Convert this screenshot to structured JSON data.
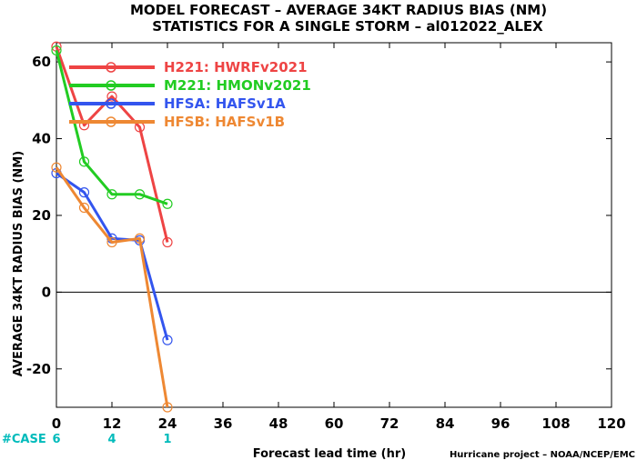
{
  "chart_data": {
    "type": "line",
    "title_line1": "MODEL FORECAST – AVERAGE 34KT RADIUS BIAS (NM)",
    "title_line2": "STATISTICS FOR A SINGLE STORM – al012022_ALEX",
    "xlabel": "Forecast lead time (hr)",
    "ylabel": "AVERAGE 34KT RADIUS BIAS (NM)",
    "xlim": [
      0,
      120
    ],
    "ylim": [
      -30,
      65
    ],
    "x_ticks": [
      0,
      12,
      24,
      36,
      48,
      60,
      72,
      84,
      96,
      108,
      120
    ],
    "y_ticks": [
      -20,
      0,
      20,
      40,
      60
    ],
    "zero_line": true,
    "grid": false,
    "legend_position": "top-left",
    "series": [
      {
        "name": "H221: HWRFv2021",
        "color": "#ee4444",
        "x": [
          0,
          6,
          12,
          18,
          24
        ],
        "y": [
          64,
          43.5,
          51,
          43,
          13
        ]
      },
      {
        "name": "M221: HMONv2021",
        "color": "#22cc22",
        "x": [
          0,
          6,
          12,
          18,
          24
        ],
        "y": [
          63,
          34,
          25.5,
          25.5,
          23
        ]
      },
      {
        "name": "HFSA: HAFSv1A",
        "color": "#3355ee",
        "x": [
          0,
          6,
          12,
          18,
          24
        ],
        "y": [
          31,
          26,
          14,
          13.5,
          -12.5
        ]
      },
      {
        "name": "HFSB: HAFSv1B",
        "color": "#ee8833",
        "x": [
          0,
          6,
          12,
          18,
          24
        ],
        "y": [
          32.5,
          22,
          13,
          14,
          -30
        ]
      }
    ],
    "cases": {
      "label": "#CASE",
      "color": "#00bbbb",
      "x": [
        0,
        12,
        24
      ],
      "values": [
        "6",
        "4",
        "1"
      ]
    }
  },
  "credit": "Hurricane project – NOAA/NCEP/EMC"
}
